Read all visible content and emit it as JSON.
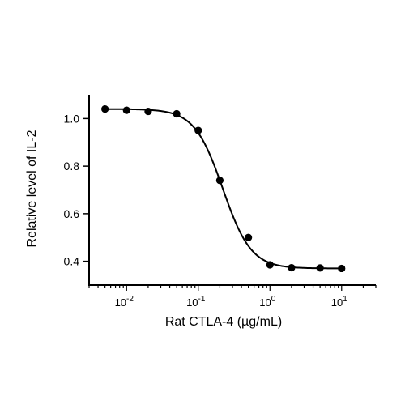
{
  "chart_data": {
    "type": "scatter",
    "title": "",
    "xlabel": "Rat CTLA-4 (µg/mL)",
    "ylabel": "Relative level of IL-2",
    "x_scale": "log",
    "xlim": [
      0.003,
      30
    ],
    "ylim": [
      0.3,
      1.1
    ],
    "x_major_ticks": [
      {
        "base": "10",
        "exp": "-2",
        "value": 0.01
      },
      {
        "base": "10",
        "exp": "-1",
        "value": 0.1
      },
      {
        "base": "10",
        "exp": "0",
        "value": 1
      },
      {
        "base": "10",
        "exp": "1",
        "value": 10
      }
    ],
    "y_ticks": [
      {
        "value": 0.4,
        "label": "0.4"
      },
      {
        "value": 0.6,
        "label": "0.6"
      },
      {
        "value": 0.8,
        "label": "0.8"
      },
      {
        "value": 1.0,
        "label": "1.0"
      }
    ],
    "grid": false,
    "legend": "none",
    "series": [
      {
        "x": [
          0.005,
          0.01,
          0.02,
          0.05,
          0.1,
          0.2,
          0.5,
          1,
          2,
          5,
          10
        ],
        "y": [
          1.04,
          1.035,
          1.03,
          1.02,
          0.95,
          0.74,
          0.5,
          0.385,
          0.373,
          0.372,
          0.37
        ]
      }
    ],
    "fit_curve": {
      "type": "4PL",
      "top": 1.04,
      "bottom": 0.37,
      "ec50": 0.22,
      "hill": 2.2
    },
    "colors": {
      "marker": "#000000",
      "line": "#000000",
      "axis": "#000000"
    }
  }
}
